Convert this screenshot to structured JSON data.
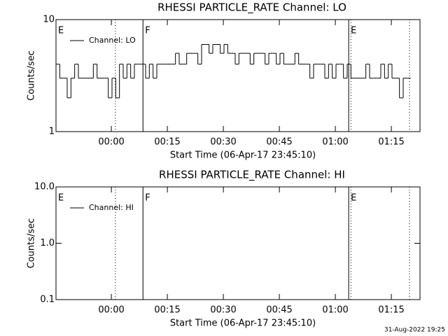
{
  "chart_data": [
    {
      "type": "line",
      "title": "RHESSI PARTICLE_RATE Channel: LO",
      "xlabel": "Start Time (06-Apr-17 23:45:10)",
      "ylabel": "Counts/sec",
      "log_y": true,
      "xlim": [
        0,
        97.5
      ],
      "ylim": [
        1,
        10
      ],
      "yticks": [
        1,
        10
      ],
      "xticks": [
        {
          "value": 14.83,
          "label": "00:00"
        },
        {
          "value": 29.83,
          "label": "00:15"
        },
        {
          "value": 44.83,
          "label": "00:30"
        },
        {
          "value": 59.83,
          "label": "00:45"
        },
        {
          "value": 74.83,
          "label": "01:00"
        },
        {
          "value": 89.83,
          "label": "01:15"
        }
      ],
      "vlines": [
        {
          "x": 15.9,
          "style": "dotted"
        },
        {
          "x": 23.3,
          "style": "solid"
        },
        {
          "x": 78.4,
          "style": "solid"
        },
        {
          "x": 79,
          "style": "dotted"
        },
        {
          "x": 94.7,
          "style": "dotted"
        }
      ],
      "flags": [
        {
          "x": 0,
          "label": "E"
        },
        {
          "x": 23.3,
          "label": "F"
        },
        {
          "x": 78.4,
          "label": "E"
        }
      ],
      "x": [
        0,
        1,
        2,
        3,
        4,
        5,
        6,
        7,
        8,
        9,
        10,
        11,
        12,
        13,
        14,
        15,
        16,
        17,
        18,
        19,
        20,
        21,
        22,
        23,
        24,
        25,
        26,
        27,
        28,
        29,
        30,
        31,
        32,
        33,
        34,
        35,
        36,
        37,
        38,
        39,
        40,
        41,
        42,
        43,
        44,
        45,
        46,
        47,
        48,
        49,
        50,
        51,
        52,
        53,
        54,
        55,
        56,
        57,
        58,
        59,
        60,
        61,
        62,
        63,
        64,
        65,
        66,
        67,
        68,
        69,
        70,
        71,
        72,
        73,
        74,
        75,
        76,
        77,
        78,
        79,
        80,
        81,
        82,
        83,
        84,
        85,
        86,
        87,
        88,
        89,
        90,
        91,
        92,
        93,
        94
      ],
      "series": [
        {
          "name": "Channel: LO",
          "color": "#000000",
          "values": [
            4,
            3,
            3,
            2,
            3,
            4,
            3,
            3,
            3,
            3,
            4,
            3,
            3,
            3,
            2,
            3,
            2,
            4,
            3,
            4,
            3,
            4,
            4,
            4,
            3,
            4,
            3,
            4,
            4,
            4,
            4,
            4,
            5,
            4,
            4,
            5,
            5,
            5,
            4,
            6,
            6,
            5,
            6,
            6,
            5,
            6,
            5,
            5,
            4,
            5,
            5,
            5,
            4,
            5,
            5,
            5,
            4,
            5,
            5,
            4,
            5,
            4,
            4,
            4,
            5,
            4,
            4,
            4,
            3,
            4,
            4,
            4,
            3,
            4,
            3,
            4,
            4,
            3,
            4,
            3,
            3,
            3,
            3,
            4,
            3,
            3,
            3,
            4,
            3,
            4,
            3,
            3,
            2,
            3,
            3
          ]
        }
      ]
    },
    {
      "type": "line",
      "title": "RHESSI PARTICLE_RATE Channel: HI",
      "xlabel": "Start Time (06-Apr-17 23:45:10)",
      "ylabel": "Counts/sec",
      "log_y": true,
      "xlim": [
        0,
        97.5
      ],
      "ylim": [
        0.1,
        10
      ],
      "yticks": [
        0.1,
        {
          "value": 1,
          "label": "1.0"
        },
        {
          "value": 10,
          "label": "10.0"
        }
      ],
      "xticks": [
        {
          "value": 14.83,
          "label": "00:00"
        },
        {
          "value": 29.83,
          "label": "00:15"
        },
        {
          "value": 44.83,
          "label": "00:30"
        },
        {
          "value": 59.83,
          "label": "00:45"
        },
        {
          "value": 74.83,
          "label": "01:00"
        },
        {
          "value": 89.83,
          "label": "01:15"
        }
      ],
      "vlines": [
        {
          "x": 15.9,
          "style": "dotted"
        },
        {
          "x": 23.3,
          "style": "solid"
        },
        {
          "x": 78.4,
          "style": "solid"
        },
        {
          "x": 79,
          "style": "dotted"
        },
        {
          "x": 94.7,
          "style": "dotted"
        }
      ],
      "flags": [
        {
          "x": 0,
          "label": "E"
        },
        {
          "x": 23.3,
          "label": "F"
        },
        {
          "x": 78.4,
          "label": "E"
        }
      ],
      "x": [],
      "series": [
        {
          "name": "Channel: HI",
          "color": "#000000",
          "values": []
        }
      ]
    }
  ],
  "timestamp": "31-Aug-2022 19:25"
}
